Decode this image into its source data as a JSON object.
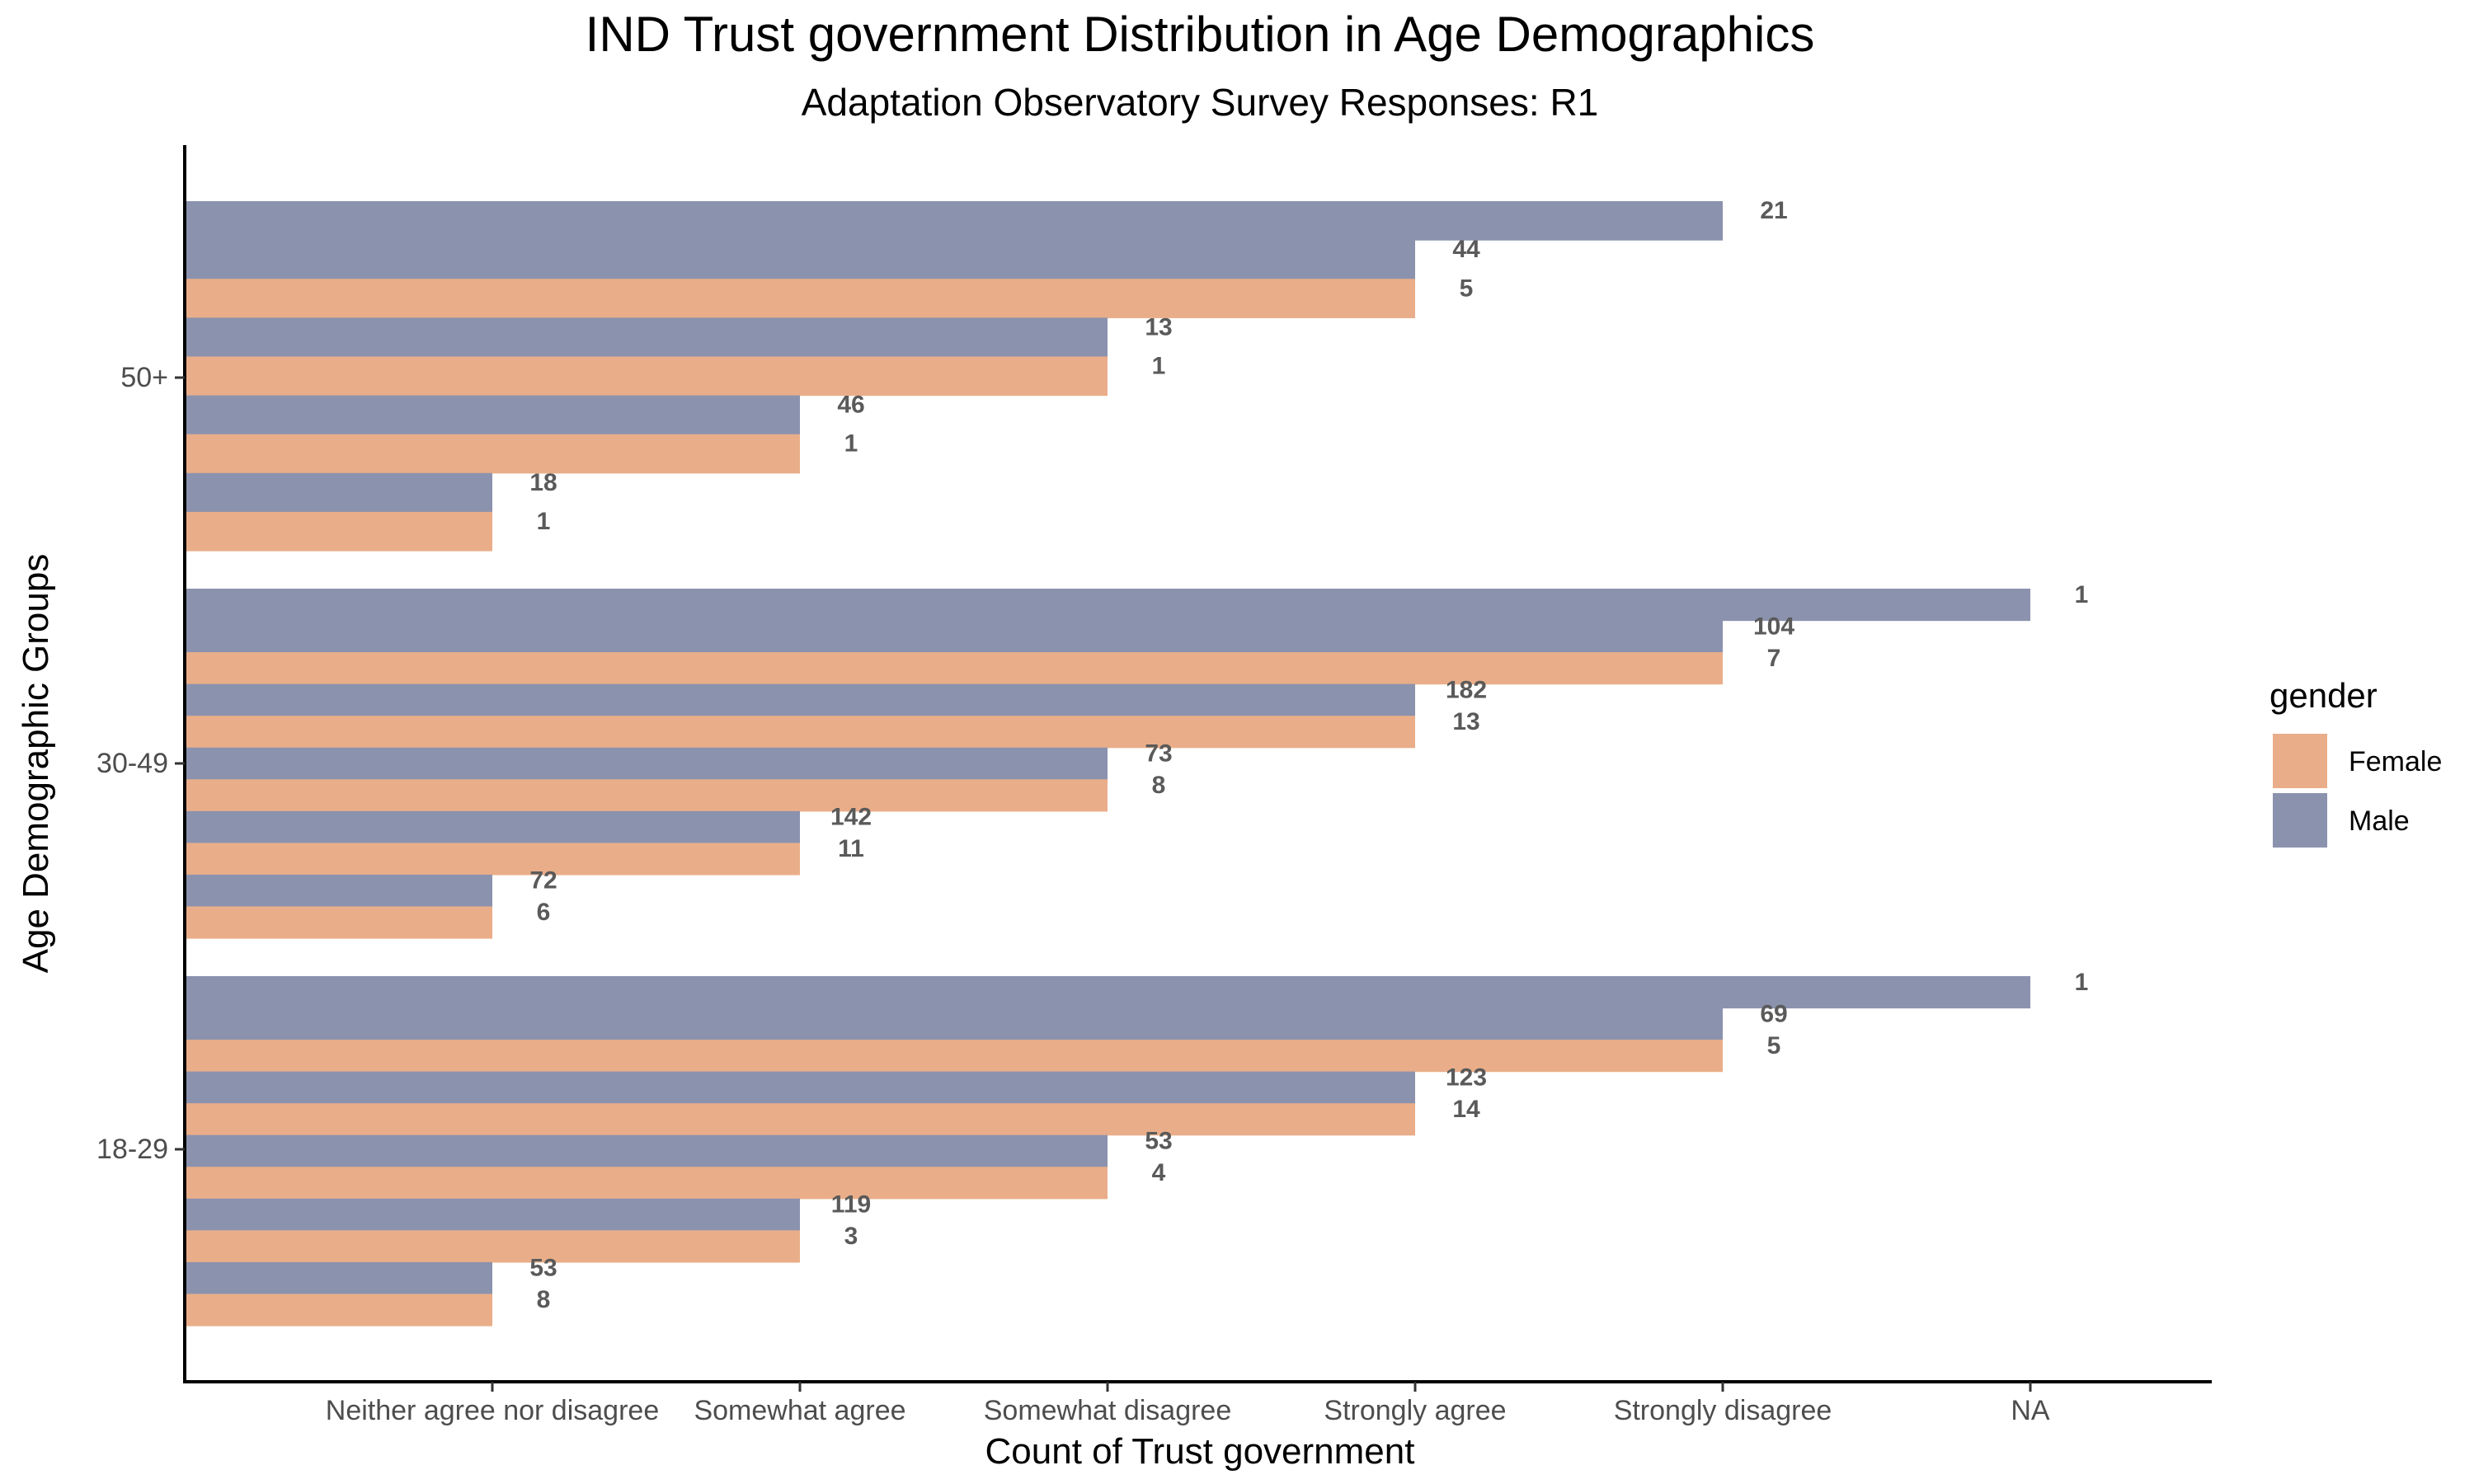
{
  "chart_data": {
    "type": "bar",
    "orientation": "horizontal",
    "title": "IND Trust government Distribution in Age Demographics",
    "subtitle": "Adaptation Observatory Survey Responses: R1",
    "xlabel": "Count of Trust government",
    "ylabel": "Age Demographic Groups",
    "x_categories": [
      "Neither agree nor disagree",
      "Somewhat agree",
      "Somewhat disagree",
      "Strongly agree",
      "Strongly disagree",
      "NA"
    ],
    "groups": [
      "18-29",
      "30-49",
      "50+"
    ],
    "legend": {
      "title": "gender",
      "position": "right",
      "items": [
        {
          "name": "Female",
          "color": "#E9AE89"
        },
        {
          "name": "Male",
          "color": "#8B92AE"
        }
      ]
    },
    "grid": false,
    "bars": [
      {
        "group": "18-29",
        "gender": "Male",
        "category": "NA",
        "label": "1"
      },
      {
        "group": "18-29",
        "gender": "Male",
        "category": "Strongly disagree",
        "label": "69"
      },
      {
        "group": "18-29",
        "gender": "Female",
        "category": "Strongly disagree",
        "label": "5"
      },
      {
        "group": "18-29",
        "gender": "Male",
        "category": "Strongly agree",
        "label": "123"
      },
      {
        "group": "18-29",
        "gender": "Female",
        "category": "Strongly agree",
        "label": "14"
      },
      {
        "group": "18-29",
        "gender": "Male",
        "category": "Somewhat disagree",
        "label": "53"
      },
      {
        "group": "18-29",
        "gender": "Female",
        "category": "Somewhat disagree",
        "label": "4"
      },
      {
        "group": "18-29",
        "gender": "Male",
        "category": "Somewhat agree",
        "label": "119"
      },
      {
        "group": "18-29",
        "gender": "Female",
        "category": "Somewhat agree",
        "label": "3"
      },
      {
        "group": "18-29",
        "gender": "Male",
        "category": "Neither agree nor disagree",
        "label": "53"
      },
      {
        "group": "18-29",
        "gender": "Female",
        "category": "Neither agree nor disagree",
        "label": "8"
      },
      {
        "group": "30-49",
        "gender": "Male",
        "category": "NA",
        "label": "1"
      },
      {
        "group": "30-49",
        "gender": "Male",
        "category": "Strongly disagree",
        "label": "104"
      },
      {
        "group": "30-49",
        "gender": "Female",
        "category": "Strongly disagree",
        "label": "7"
      },
      {
        "group": "30-49",
        "gender": "Male",
        "category": "Strongly agree",
        "label": "182"
      },
      {
        "group": "30-49",
        "gender": "Female",
        "category": "Strongly agree",
        "label": "13"
      },
      {
        "group": "30-49",
        "gender": "Male",
        "category": "Somewhat disagree",
        "label": "73"
      },
      {
        "group": "30-49",
        "gender": "Female",
        "category": "Somewhat disagree",
        "label": "8"
      },
      {
        "group": "30-49",
        "gender": "Male",
        "category": "Somewhat agree",
        "label": "142"
      },
      {
        "group": "30-49",
        "gender": "Female",
        "category": "Somewhat agree",
        "label": "11"
      },
      {
        "group": "30-49",
        "gender": "Male",
        "category": "Neither agree nor disagree",
        "label": "72"
      },
      {
        "group": "30-49",
        "gender": "Female",
        "category": "Neither agree nor disagree",
        "label": "6"
      },
      {
        "group": "50+",
        "gender": "Male",
        "category": "Strongly disagree",
        "label": "21"
      },
      {
        "group": "50+",
        "gender": "Male",
        "category": "Strongly agree",
        "label": "44"
      },
      {
        "group": "50+",
        "gender": "Female",
        "category": "Strongly agree",
        "label": "5"
      },
      {
        "group": "50+",
        "gender": "Male",
        "category": "Somewhat disagree",
        "label": "13"
      },
      {
        "group": "50+",
        "gender": "Female",
        "category": "Somewhat disagree",
        "label": "1"
      },
      {
        "group": "50+",
        "gender": "Male",
        "category": "Somewhat agree",
        "label": "46"
      },
      {
        "group": "50+",
        "gender": "Female",
        "category": "Somewhat agree",
        "label": "1"
      },
      {
        "group": "50+",
        "gender": "Male",
        "category": "Neither agree nor disagree",
        "label": "18"
      },
      {
        "group": "50+",
        "gender": "Female",
        "category": "Neither agree nor disagree",
        "label": "1"
      }
    ]
  }
}
